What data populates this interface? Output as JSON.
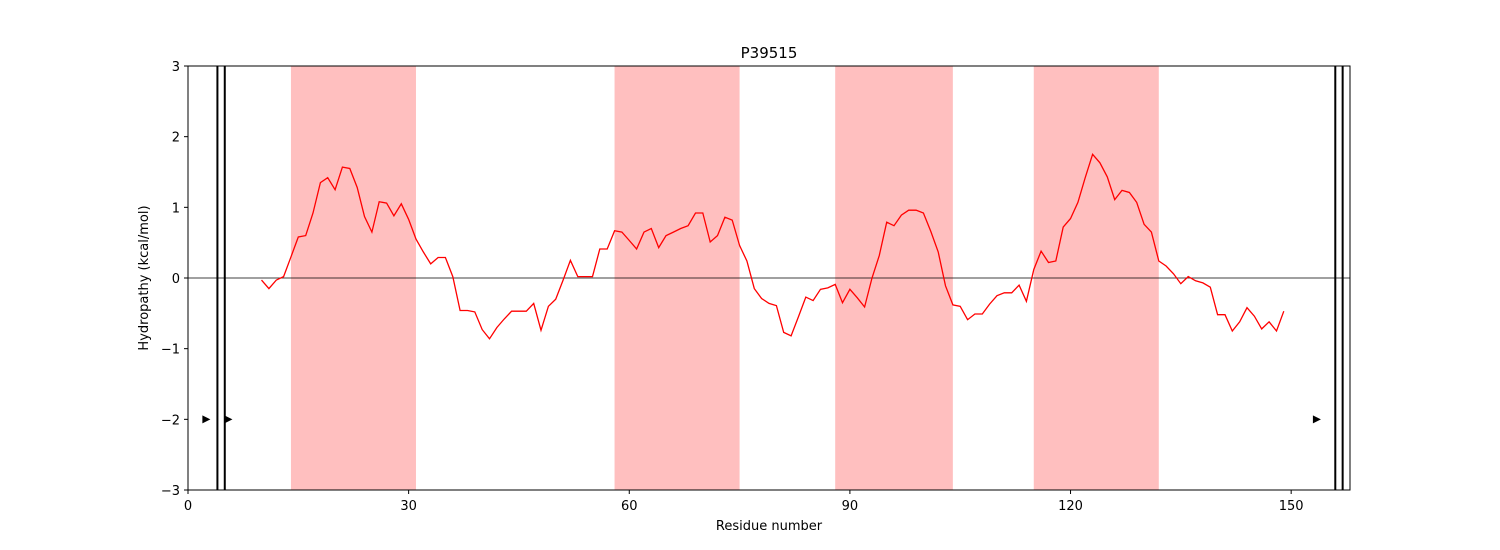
{
  "chart_data": {
    "type": "line",
    "title": "P39515",
    "xlabel": "Residue number",
    "ylabel": "Hydropathy (kcal/mol)",
    "xlim": [
      0,
      158
    ],
    "ylim": [
      -3,
      3
    ],
    "xticks": [
      0,
      30,
      60,
      90,
      120,
      150
    ],
    "yticks": [
      -3,
      -2,
      -1,
      0,
      1,
      2,
      3
    ],
    "ytick_labels": [
      "−3",
      "−2",
      "−1",
      "0",
      "1",
      "2",
      "3"
    ],
    "line_color": "#ff0000",
    "highlight_color": "#ffbfbf",
    "highlight_regions": [
      [
        14,
        31
      ],
      [
        58,
        75
      ],
      [
        88,
        104
      ],
      [
        115,
        132
      ]
    ],
    "vertical_lines": [
      4,
      5,
      156,
      157
    ],
    "markers": [
      {
        "x": 2.5,
        "y": -2,
        "glyph": "▶"
      },
      {
        "x": 5.5,
        "y": -2,
        "glyph": "▶"
      },
      {
        "x": 153.5,
        "y": -2,
        "glyph": "▶"
      }
    ],
    "series": [
      {
        "x": [
          10,
          11,
          12,
          13,
          14,
          15,
          16,
          17,
          18,
          19,
          20,
          21,
          22,
          23,
          24,
          25,
          26,
          27,
          28,
          29,
          30,
          31,
          32,
          33,
          34,
          35,
          36,
          37,
          38,
          39,
          40,
          41,
          42,
          43,
          44,
          45,
          46,
          47,
          48,
          49,
          50,
          51,
          52,
          53,
          54,
          55,
          56,
          57,
          58,
          59,
          60,
          61,
          62,
          63,
          64,
          65,
          66,
          67,
          68,
          69,
          70,
          71,
          72,
          73,
          74,
          75,
          76,
          77,
          78,
          79,
          80,
          81,
          82,
          83,
          84,
          85,
          86,
          87,
          88,
          89,
          90,
          91,
          92,
          93,
          94,
          95,
          96,
          97,
          98,
          99,
          100,
          101,
          102,
          103,
          104,
          105,
          106,
          107,
          108,
          109,
          110,
          111,
          112,
          113,
          114,
          115,
          116,
          117,
          118,
          119,
          120,
          121,
          122,
          123,
          124,
          125,
          126,
          127,
          128,
          129,
          130,
          131,
          132,
          133,
          134,
          135,
          136,
          137,
          138,
          139,
          140,
          141,
          142,
          143,
          144,
          145,
          146,
          147,
          148,
          149
        ],
        "values": [
          -0.03,
          -0.15,
          -0.03,
          0.02,
          0.3,
          0.58,
          0.6,
          0.92,
          1.35,
          1.42,
          1.25,
          1.57,
          1.55,
          1.28,
          0.87,
          0.65,
          1.08,
          1.06,
          0.88,
          1.05,
          0.83,
          0.55,
          0.37,
          0.2,
          0.29,
          0.29,
          0.02,
          -0.46,
          -0.46,
          -0.48,
          -0.73,
          -0.86,
          -0.7,
          -0.58,
          -0.47,
          -0.47,
          -0.47,
          -0.36,
          -0.74,
          -0.4,
          -0.3,
          -0.03,
          0.25,
          0.02,
          0.02,
          0.02,
          0.41,
          0.41,
          0.67,
          0.65,
          0.53,
          0.41,
          0.65,
          0.7,
          0.43,
          0.6,
          0.65,
          0.7,
          0.74,
          0.92,
          0.92,
          0.51,
          0.6,
          0.86,
          0.82,
          0.46,
          0.24,
          -0.15,
          -0.29,
          -0.36,
          -0.39,
          -0.77,
          -0.82,
          -0.55,
          -0.27,
          -0.32,
          -0.16,
          -0.14,
          -0.09,
          -0.35,
          -0.16,
          -0.28,
          -0.41,
          0.0,
          0.32,
          0.79,
          0.74,
          0.89,
          0.96,
          0.96,
          0.92,
          0.66,
          0.37,
          -0.11,
          -0.38,
          -0.4,
          -0.59,
          -0.51,
          -0.51,
          -0.37,
          -0.25,
          -0.21,
          -0.21,
          -0.1,
          -0.33,
          0.12,
          0.38,
          0.22,
          0.24,
          0.72,
          0.84,
          1.07,
          1.42,
          1.75,
          1.63,
          1.43,
          1.11,
          1.24,
          1.21,
          1.07,
          0.76,
          0.65,
          0.24,
          0.17,
          0.06,
          -0.08,
          0.02,
          -0.04,
          -0.07,
          -0.13,
          -0.52,
          -0.52,
          -0.75,
          -0.62,
          -0.42,
          -0.54,
          -0.72,
          -0.62,
          -0.75,
          -0.47
        ]
      }
    ]
  }
}
